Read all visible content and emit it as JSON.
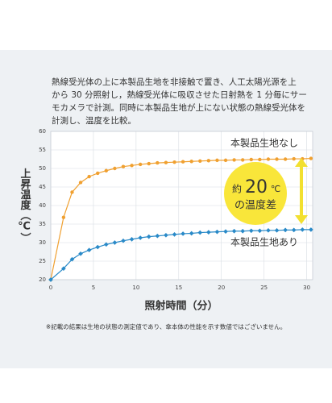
{
  "chart_data": {
    "type": "line",
    "description": [
      "熱線受光体の上に本製品生地を非接触で置き、人工太陽光源を上",
      "から 30 分照射し，熱線受光体に吸収させた日射熱を 1 分毎にサー",
      "モカメラで計測。同時に本製品生地が上にない状態の熱線受光体を",
      "計測し、温度を比較。"
    ],
    "y_label": "上昇温度（℃）",
    "x_label": "照射時間（分）",
    "footnote": "※記載の結果は生地の状態の測定値であり、傘本体の性能を示す数値ではございません。",
    "annotation": [
      "約",
      "20",
      "℃",
      "の温度差"
    ],
    "x": [
      0,
      1.5,
      2.5,
      3.5,
      4.5,
      5.5,
      6.5,
      7.5,
      8.5,
      9.5,
      10.5,
      11.5,
      12.5,
      13.5,
      14.5,
      15.5,
      16.5,
      17.5,
      18.5,
      19.5,
      20.5,
      21.5,
      22.5,
      23.5,
      24.5,
      25.5,
      26.5,
      27.5,
      28.5,
      29.5,
      30.5
    ],
    "series": [
      {
        "name": "本製品生地なし",
        "color": "#f0a030",
        "values": [
          20,
          36.8,
          43.6,
          46.2,
          47.8,
          48.7,
          49.4,
          50.0,
          50.5,
          50.8,
          51.1,
          51.3,
          51.5,
          51.6,
          51.7,
          51.8,
          51.9,
          52.0,
          52.1,
          52.2,
          52.2,
          52.3,
          52.3,
          52.4,
          52.4,
          52.5,
          52.5,
          52.5,
          52.6,
          52.6,
          52.7
        ]
      },
      {
        "name": "本製品生地あり",
        "color": "#2a8ac8",
        "values": [
          20,
          23.0,
          25.5,
          27.0,
          28.0,
          28.8,
          29.5,
          30.0,
          30.5,
          30.9,
          31.3,
          31.6,
          31.8,
          32.0,
          32.2,
          32.4,
          32.5,
          32.7,
          32.8,
          32.9,
          33.0,
          33.1,
          33.1,
          33.2,
          33.2,
          33.3,
          33.3,
          33.4,
          33.4,
          33.5,
          33.5
        ]
      }
    ],
    "xlim": [
      0,
      30.7
    ],
    "xticks": [
      0,
      5,
      10,
      15,
      20,
      25,
      30
    ],
    "ylim": [
      20,
      60
    ],
    "yticks": [
      20,
      25,
      30,
      35,
      40,
      45,
      50,
      55,
      60
    ],
    "grid": true
  }
}
